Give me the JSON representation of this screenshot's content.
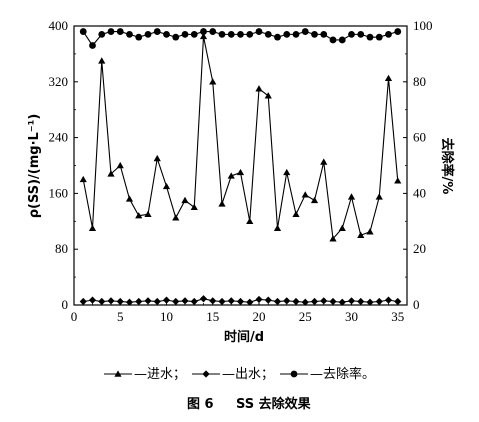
{
  "chart_data": {
    "type": "line",
    "x": [
      1,
      2,
      3,
      4,
      5,
      6,
      7,
      8,
      9,
      10,
      11,
      12,
      13,
      14,
      15,
      16,
      17,
      18,
      19,
      20,
      21,
      22,
      23,
      24,
      25,
      26,
      27,
      28,
      29,
      30,
      31,
      32,
      33,
      34,
      35
    ],
    "xlim": [
      0,
      36
    ],
    "xticks": [
      "0",
      "5",
      "10",
      "15",
      "20",
      "25",
      "30",
      "35"
    ],
    "xlabel": "时间/d",
    "ylabel_left": "ρ(SS)/(mg·L⁻¹)",
    "ylim_left": [
      0,
      400
    ],
    "yticks_left": [
      "0",
      "80",
      "160",
      "240",
      "320",
      "400"
    ],
    "ylabel_right": "去除率/%",
    "ylim_right": [
      0,
      100
    ],
    "yticks_right": [
      "0",
      "20",
      "40",
      "60",
      "80",
      "100"
    ],
    "grid": false,
    "series": [
      {
        "name": "进水",
        "axis": "left",
        "marker": "triangle",
        "values": [
          180,
          110,
          350,
          188,
          200,
          152,
          128,
          130,
          210,
          170,
          125,
          150,
          140,
          385,
          320,
          145,
          185,
          190,
          120,
          310,
          300,
          110,
          190,
          130,
          158,
          150,
          205,
          95,
          110,
          155,
          100,
          105,
          155,
          325,
          178
        ]
      },
      {
        "name": "出水",
        "axis": "left",
        "marker": "diamond",
        "values": [
          5,
          7,
          5,
          6,
          5,
          4,
          5,
          6,
          5,
          7,
          5,
          6,
          5,
          9,
          6,
          5,
          6,
          5,
          4,
          8,
          7,
          5,
          6,
          5,
          4,
          5,
          6,
          5,
          4,
          6,
          5,
          4,
          5,
          7,
          5
        ]
      },
      {
        "name": "去除率",
        "axis": "right",
        "marker": "circle",
        "values": [
          98,
          93,
          97,
          98,
          98,
          97,
          96,
          97,
          98,
          97,
          96,
          97,
          97,
          98,
          98,
          97,
          97,
          97,
          97,
          98,
          97,
          96,
          97,
          97,
          98,
          97,
          97,
          95,
          95,
          97,
          97,
          96,
          96,
          97,
          98
        ]
      }
    ]
  },
  "legend": {
    "sep1": "；",
    "sep2": "；",
    "end": "。"
  },
  "caption": {
    "number": "图 6",
    "title": "SS 去除效果"
  }
}
